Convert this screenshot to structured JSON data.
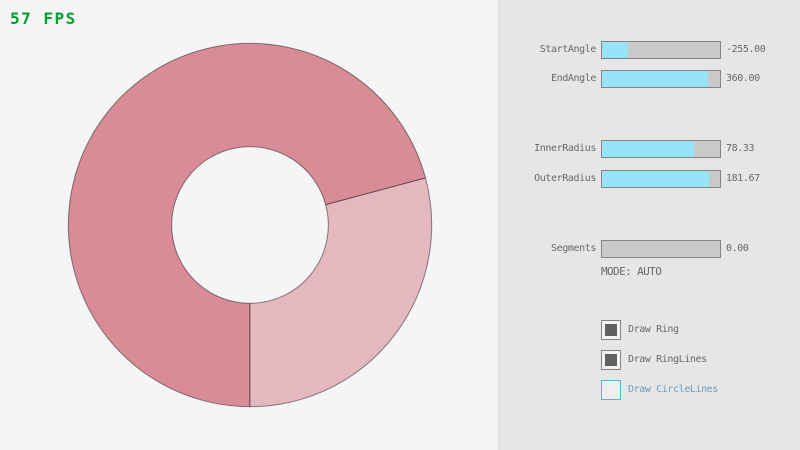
{
  "fps": {
    "text": "57 FPS"
  },
  "ring": {
    "colors": {
      "overlap_segment": "#D98C98",
      "single_segment": "#E5B7BF",
      "outline": "rgba(0,0,0,0.45)"
    }
  },
  "panel": {
    "sliders": [
      {
        "label": "StartAngle",
        "value": "-255.00",
        "fill_pct": 21.7
      },
      {
        "label": "EndAngle",
        "value": "360.00",
        "fill_pct": 90.0
      },
      {
        "label": "InnerRadius",
        "value": "78.33",
        "fill_pct": 78.3
      },
      {
        "label": "OuterRadius",
        "value": "181.67",
        "fill_pct": 90.8
      },
      {
        "label": "Segments",
        "value": "0.00",
        "fill_pct": 0
      }
    ],
    "mode_text": "MODE: AUTO",
    "checkboxes": [
      {
        "label": "Draw Ring",
        "checked": true,
        "focused": false
      },
      {
        "label": "Draw RingLines",
        "checked": true,
        "focused": false
      },
      {
        "label": "Draw CircleLines",
        "checked": false,
        "focused": true
      }
    ]
  },
  "theme": {
    "canvas_bg": "#F5F5F5",
    "panel_bg": "#E6E6E6",
    "accent": "#97E4F9",
    "track": "#C9C9C9",
    "border": "#838383",
    "text": "#686868",
    "focus_border": "#5BB2D9",
    "focus_text": "#6C9BBC",
    "fps_green": "#009E2F"
  }
}
